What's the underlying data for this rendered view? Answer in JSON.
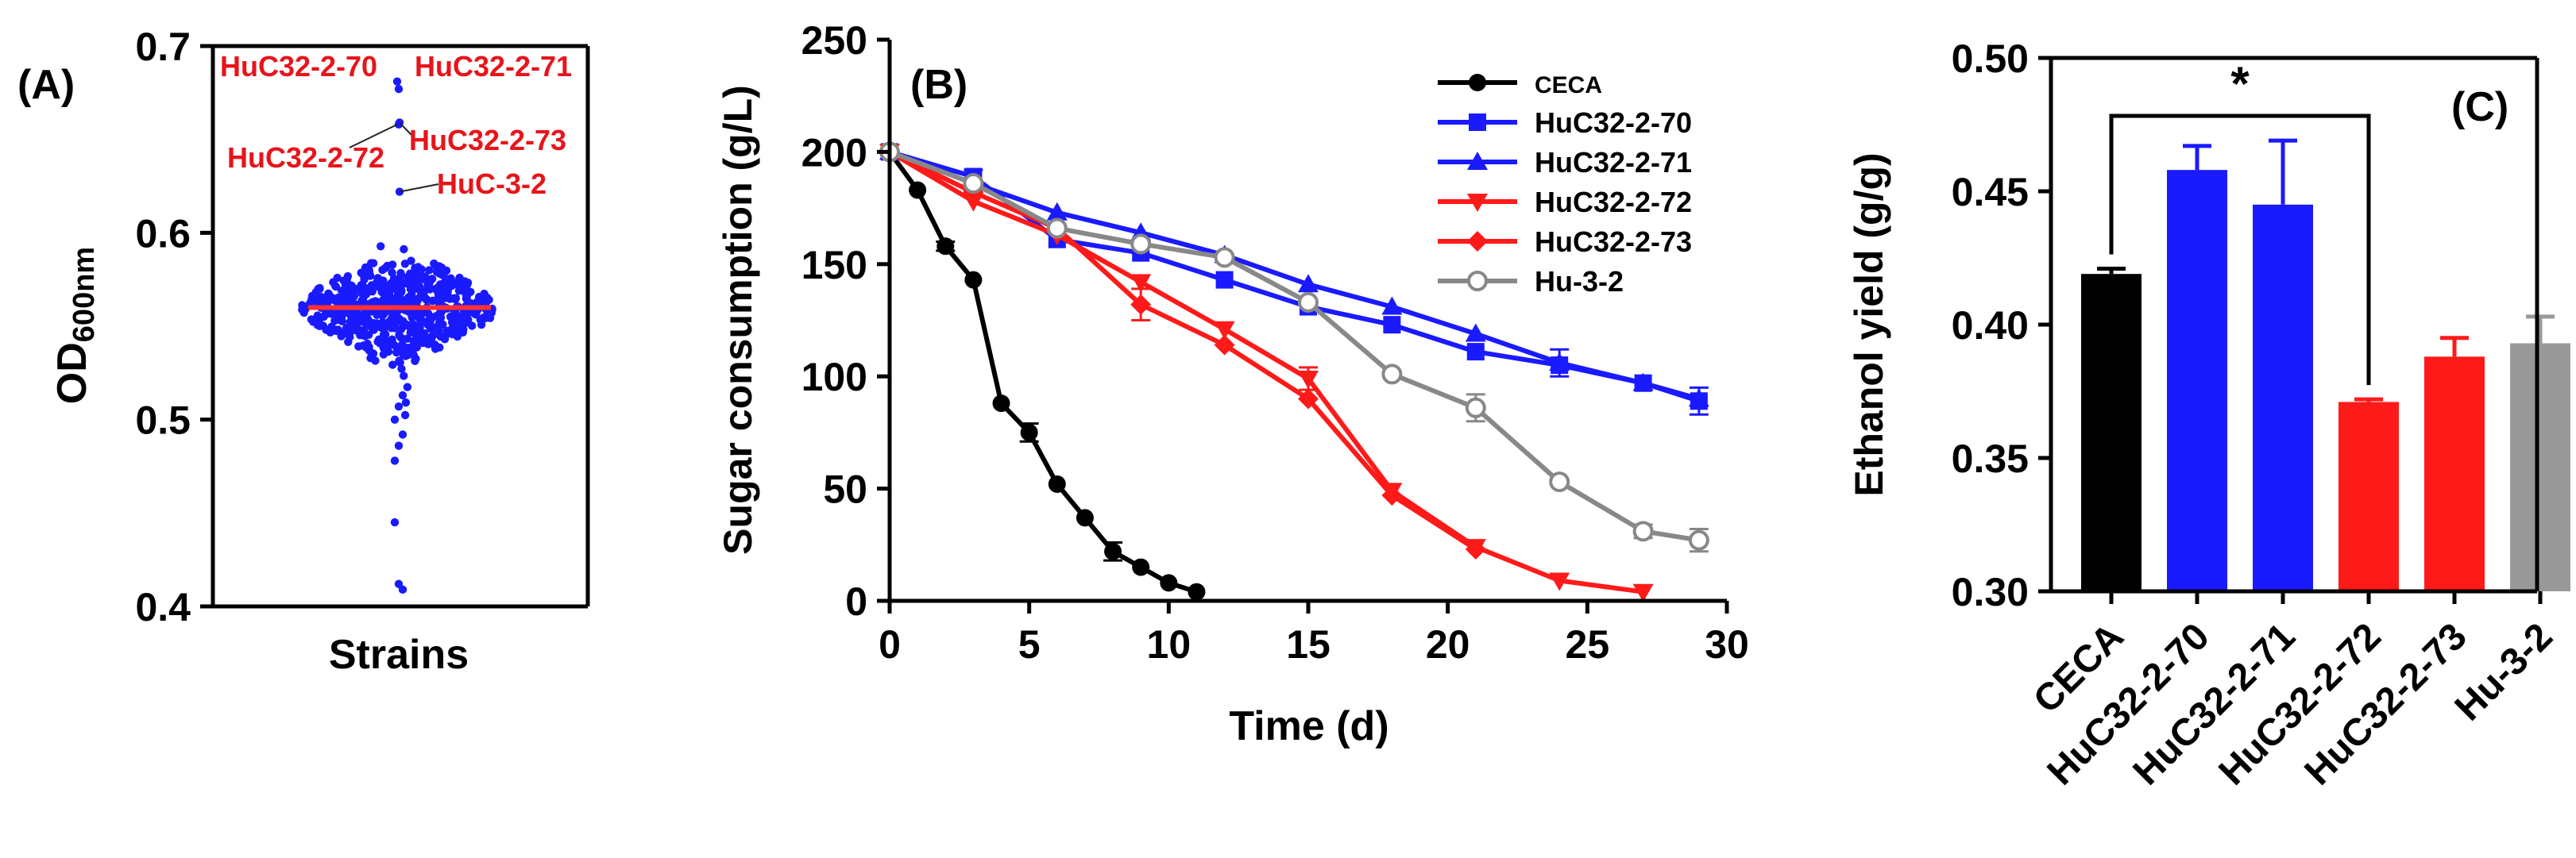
{
  "chart_data": [
    {
      "panel_label": "(A)",
      "type": "scatter",
      "ylabel_main": "OD",
      "ylabel_sub": "600nm",
      "xlabel": "Strains",
      "ylim": [
        0.4,
        0.7
      ],
      "yticks": [
        "0.4",
        "0.5",
        "0.6",
        "0.7"
      ],
      "colors": {
        "points": "#1a1aff",
        "median": "#ff3030",
        "labels": "#e8141b"
      },
      "median": 0.56,
      "distribution": {
        "min": 0.41,
        "max": 0.605,
        "count": 620
      },
      "highlight_points": [
        {
          "name": "HuC32-2-70",
          "y": 0.681
        },
        {
          "name": "HuC32-2-71",
          "y": 0.677
        },
        {
          "name": "HuC32-2-72",
          "y": 0.658
        },
        {
          "name": "HuC32-2-73",
          "y": 0.659
        },
        {
          "name": "HuC-3-2",
          "y": 0.622
        }
      ]
    },
    {
      "panel_label": "(B)",
      "type": "line",
      "xlabel": "Time (d)",
      "ylabel": "Sugar consumption (g/L)",
      "xlim": [
        0,
        30
      ],
      "ylim": [
        0,
        250
      ],
      "xticks": [
        "0",
        "5",
        "10",
        "15",
        "20",
        "25",
        "30"
      ],
      "yticks": [
        "0",
        "50",
        "100",
        "150",
        "200",
        "250"
      ],
      "legend_position": "top-right",
      "series": [
        {
          "name": "CECA",
          "color": "#000000",
          "marker": "circle",
          "x": [
            0,
            1,
            2,
            3,
            4,
            5,
            6,
            7,
            8,
            9,
            10,
            11
          ],
          "y": [
            200,
            183,
            158,
            143,
            88,
            75,
            52,
            37,
            22,
            15,
            8,
            4
          ],
          "err": [
            0,
            0,
            2,
            0,
            0,
            4,
            0,
            0,
            4,
            0,
            0,
            0
          ]
        },
        {
          "name": "HuC32-2-70",
          "color": "#1a1aff",
          "marker": "square",
          "x": [
            0,
            3,
            6,
            9,
            12,
            15,
            18,
            21,
            24,
            27,
            29
          ],
          "y": [
            200,
            189,
            161,
            155,
            143,
            131,
            123,
            111,
            105,
            97,
            89
          ],
          "err": [
            0,
            3,
            0,
            0,
            0,
            0,
            0,
            0,
            0,
            0,
            6
          ]
        },
        {
          "name": "HuC32-2-71",
          "color": "#1a1aff",
          "marker": "triangle-up",
          "x": [
            0,
            3,
            6,
            9,
            12,
            15,
            18,
            21,
            24,
            27,
            29
          ],
          "y": [
            200,
            186,
            173,
            164,
            154,
            141,
            131,
            119,
            106,
            97,
            90
          ],
          "err": [
            0,
            0,
            0,
            0,
            0,
            0,
            0,
            0,
            6,
            0,
            0
          ]
        },
        {
          "name": "HuC32-2-72",
          "color": "#ff1a1a",
          "marker": "triangle-down",
          "x": [
            0,
            3,
            6,
            9,
            12,
            15,
            18,
            21,
            24,
            27
          ],
          "y": [
            200,
            178,
            163,
            142,
            121,
            99,
            49,
            24,
            9,
            4
          ],
          "err": [
            0,
            0,
            0,
            0,
            0,
            5,
            0,
            0,
            0,
            0
          ]
        },
        {
          "name": "HuC32-2-73",
          "color": "#ff1a1a",
          "marker": "diamond",
          "x": [
            0,
            3,
            6,
            9,
            12,
            15,
            18,
            21
          ],
          "y": [
            200,
            182,
            166,
            132,
            114,
            90,
            47,
            23
          ],
          "err": [
            0,
            0,
            0,
            7,
            0,
            0,
            0,
            0
          ]
        },
        {
          "name": "Hu-3-2",
          "color": "#888888",
          "marker": "circle-open",
          "x": [
            0,
            3,
            6,
            9,
            12,
            15,
            18,
            21,
            24,
            27,
            29
          ],
          "y": [
            200,
            186,
            166,
            159,
            153,
            133,
            101,
            86,
            53,
            31,
            27
          ],
          "err": [
            0,
            0,
            0,
            0,
            0,
            0,
            0,
            6,
            0,
            3,
            5
          ]
        }
      ]
    },
    {
      "panel_label": "(C)",
      "type": "bar",
      "ylabel": "Ethanol yield (g/g)",
      "ylim": [
        0.3,
        0.5
      ],
      "yticks": [
        "0.30",
        "0.35",
        "0.40",
        "0.45",
        "0.50"
      ],
      "categories": [
        "CECA",
        "HuC32-2-70",
        "HuC32-2-71",
        "HuC32-2-72",
        "HuC32-2-73",
        "Hu-3-2"
      ],
      "values": [
        0.419,
        0.458,
        0.445,
        0.371,
        0.388,
        0.393
      ],
      "errors": [
        0.002,
        0.009,
        0.024,
        0.001,
        0.007,
        0.01
      ],
      "colors": [
        "#000000",
        "#1a1aff",
        "#1a1aff",
        "#ff1a1a",
        "#ff1a1a",
        "#999999"
      ],
      "significance": {
        "from": 0,
        "to": 3,
        "label": "*"
      }
    }
  ]
}
